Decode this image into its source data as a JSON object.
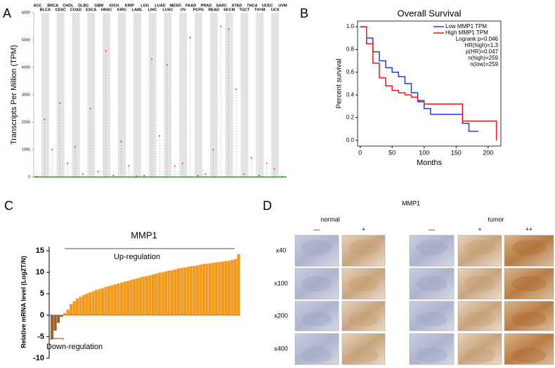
{
  "panel_labels": [
    "A",
    "B",
    "C",
    "D"
  ],
  "chart_data": [
    {
      "type": "dot",
      "ylabel": "Transcripts Per Million (TPM)",
      "categories": [
        "ACC",
        "BLCA",
        "BRCA",
        "CESC",
        "CHOL",
        "COAD",
        "DLBC",
        "ESCA",
        "GBM",
        "HNSC",
        "KICH",
        "KIRC",
        "KIRP",
        "LAML",
        "LGG",
        "LIHC",
        "LUAD",
        "LUSC",
        "MESO",
        "OV",
        "PAAD",
        "PCPG",
        "PRAD",
        "READ",
        "SARC",
        "SKCM",
        "STAD",
        "TGCT",
        "THCA",
        "THYM",
        "UCEC",
        "UCS",
        "UVM"
      ],
      "category_colors": [
        "#000000",
        "#e8262b",
        "#e8262b",
        "#e8262b",
        "#000000",
        "#e8262b",
        "#e8262b",
        "#e8262b",
        "#000000",
        "#e8262b",
        "#000000",
        "#000000",
        "#000000",
        "#000000",
        "#000000",
        "#000000",
        "#e8262b",
        "#e8262b",
        "#000000",
        "#000000",
        "#e8262b",
        "#000000",
        "#000000",
        "#e8262b",
        "#000000",
        "#e8262b",
        "#e8262b",
        "#000000",
        "#000000",
        "#000000",
        "#e8262b",
        "#e8262b",
        "#000000"
      ],
      "values": [
        20,
        2100,
        1000,
        2700,
        500,
        1100,
        100,
        2500,
        200,
        4600,
        50,
        1300,
        400,
        20,
        50,
        4300,
        1500,
        4100,
        400,
        500,
        5100,
        50,
        100,
        1000,
        5500,
        5400,
        3200,
        100,
        700,
        50,
        500,
        300,
        20
      ],
      "ylim": [
        0,
        6000
      ],
      "yticks": [
        0,
        1000,
        2000,
        3000,
        4000,
        5000,
        6000
      ],
      "point_color": "#e8262b",
      "stripe_color": "#e3e3e3"
    },
    {
      "type": "step",
      "title": "Overall Survival",
      "xlabel": "Months",
      "ylabel": "Percent survival",
      "series": [
        {
          "name": "Low MMP1 TPM",
          "color": "#1f3fd6",
          "x": [
            0,
            10,
            20,
            30,
            40,
            50,
            60,
            70,
            80,
            90,
            100,
            110,
            140,
            160,
            170,
            185
          ],
          "values": [
            1,
            0.9,
            0.78,
            0.7,
            0.64,
            0.6,
            0.56,
            0.5,
            0.42,
            0.34,
            0.28,
            0.23,
            0.23,
            0.15,
            0.08,
            0.08
          ]
        },
        {
          "name": "High MMP1 TPM",
          "color": "#e8161b",
          "x": [
            0,
            10,
            20,
            30,
            40,
            50,
            60,
            70,
            80,
            90,
            100,
            130,
            160,
            213,
            213
          ],
          "values": [
            1,
            0.85,
            0.68,
            0.55,
            0.48,
            0.44,
            0.42,
            0.4,
            0.38,
            0.35,
            0.32,
            0.32,
            0.17,
            0.17,
            0
          ]
        }
      ],
      "annotations": [
        "Logrank p=0.046",
        "HR(high)=1.3",
        "p(HR)=0.047",
        "n(high)=259",
        "n(low)=259"
      ],
      "xlim": [
        -4,
        220
      ],
      "xticks": [
        0,
        50,
        100,
        150,
        200
      ],
      "ylim": [
        -0.05,
        1.05
      ],
      "yticks": [
        {
          "value": 0,
          "label": "0.0"
        },
        {
          "value": 0.2,
          "label": "0.2"
        },
        {
          "value": 0.4,
          "label": "0.4"
        },
        {
          "value": 0.6,
          "label": "0.6"
        },
        {
          "value": 0.8,
          "label": "0.8"
        },
        {
          "value": 1,
          "label": "1.0"
        }
      ],
      "legend": "upper-right"
    },
    {
      "type": "bar",
      "title": "MMP1",
      "ylabel": "Relative mRNA level (Log2T/N)",
      "values": [
        -5.6,
        -3.6,
        -1.8,
        -0.4,
        0.5,
        1.3,
        2.6,
        3.3,
        3.9,
        4.3,
        4.7,
        5.0,
        5.3,
        5.6,
        5.9,
        6.1,
        6.3,
        6.6,
        6.8,
        7.0,
        7.2,
        7.4,
        7.6,
        7.8,
        8.0,
        8.2,
        8.4,
        8.6,
        8.8,
        9.0,
        9.1,
        9.3,
        9.5,
        9.7,
        9.9,
        10.0,
        10.2,
        10.4,
        10.5,
        10.7,
        10.9,
        11.0,
        11.1,
        11.3,
        11.4,
        11.5,
        11.6,
        11.8,
        11.9,
        12.0,
        12.1,
        12.2,
        12.3,
        12.4,
        12.5,
        12.6,
        12.7,
        12.9,
        13.1,
        14.2
      ],
      "color": "#f39a1e",
      "negative_color": "#a0622d",
      "ylim": [
        -10,
        16
      ],
      "yticks": [
        -10,
        -5,
        0,
        5,
        10,
        15
      ],
      "annotations": [
        "Up-regulation",
        "Down-regulation"
      ]
    }
  ],
  "ihc": {
    "title": "MMP1",
    "groups": [
      "normal",
      "tumor"
    ],
    "columns": [
      "—",
      "+",
      "—",
      "+",
      "++"
    ],
    "rows": [
      "x40",
      "x100",
      "x200",
      "x400"
    ]
  }
}
